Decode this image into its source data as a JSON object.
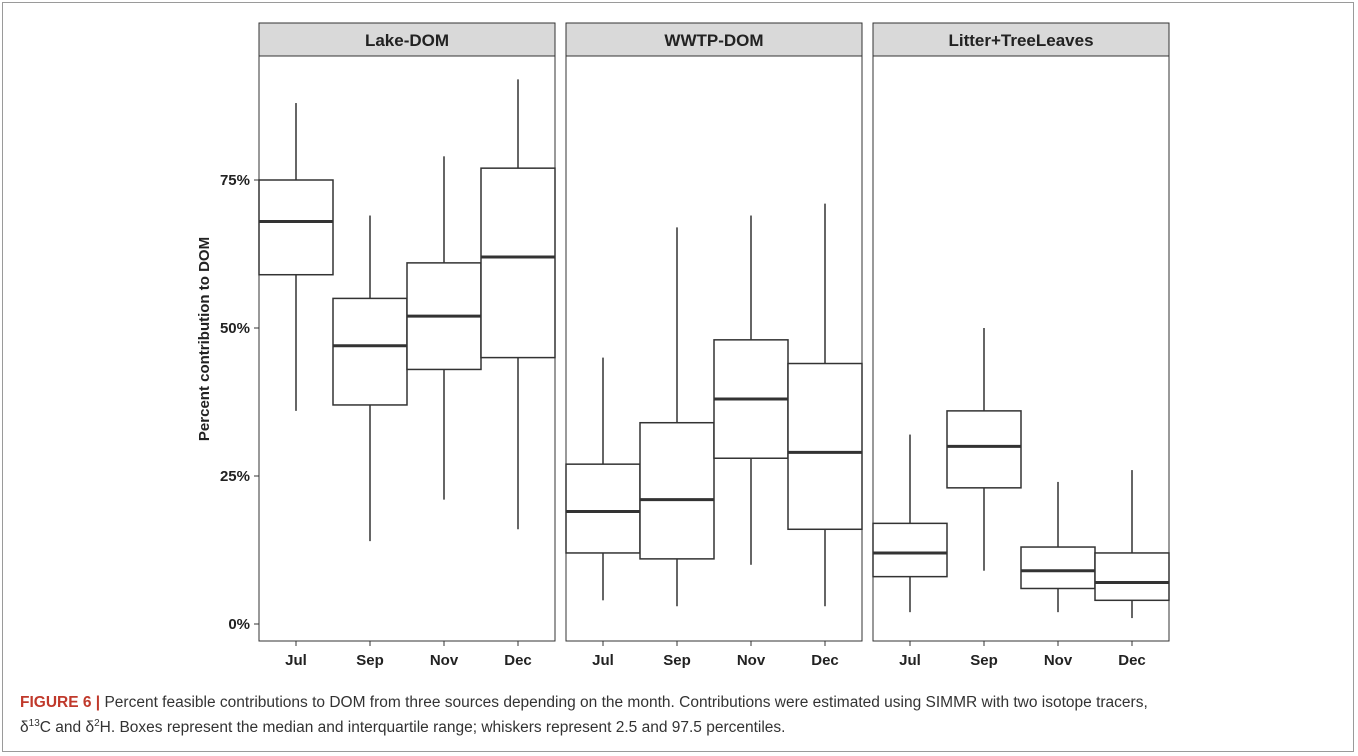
{
  "chart_data": {
    "type": "boxplot",
    "ylabel": "Percent contribution to DOM",
    "xlabel": "",
    "ylim": [
      0,
      1
    ],
    "y_ticks": [
      0,
      0.25,
      0.5,
      0.75
    ],
    "y_tick_labels": [
      "0%",
      "25%",
      "50%",
      "75%"
    ],
    "categories": [
      "Jul",
      "Sep",
      "Nov",
      "Dec"
    ],
    "panels": [
      {
        "name": "Lake-DOM",
        "boxes": [
          {
            "month": "Jul",
            "whisker_low": 0.36,
            "q1": 0.59,
            "median": 0.68,
            "q3": 0.75,
            "whisker_high": 0.88
          },
          {
            "month": "Sep",
            "whisker_low": 0.14,
            "q1": 0.37,
            "median": 0.47,
            "q3": 0.55,
            "whisker_high": 0.69
          },
          {
            "month": "Nov",
            "whisker_low": 0.21,
            "q1": 0.43,
            "median": 0.52,
            "q3": 0.61,
            "whisker_high": 0.79
          },
          {
            "month": "Dec",
            "whisker_low": 0.16,
            "q1": 0.45,
            "median": 0.62,
            "q3": 0.77,
            "whisker_high": 0.92
          }
        ]
      },
      {
        "name": "WWTP-DOM",
        "boxes": [
          {
            "month": "Jul",
            "whisker_low": 0.04,
            "q1": 0.12,
            "median": 0.19,
            "q3": 0.27,
            "whisker_high": 0.45
          },
          {
            "month": "Sep",
            "whisker_low": 0.03,
            "q1": 0.11,
            "median": 0.21,
            "q3": 0.34,
            "whisker_high": 0.67
          },
          {
            "month": "Nov",
            "whisker_low": 0.1,
            "q1": 0.28,
            "median": 0.38,
            "q3": 0.48,
            "whisker_high": 0.69
          },
          {
            "month": "Dec",
            "whisker_low": 0.03,
            "q1": 0.16,
            "median": 0.29,
            "q3": 0.44,
            "whisker_high": 0.71
          }
        ]
      },
      {
        "name": "Litter+TreeLeaves",
        "boxes": [
          {
            "month": "Jul",
            "whisker_low": 0.02,
            "q1": 0.08,
            "median": 0.12,
            "q3": 0.17,
            "whisker_high": 0.32
          },
          {
            "month": "Sep",
            "whisker_low": 0.09,
            "q1": 0.23,
            "median": 0.3,
            "q3": 0.36,
            "whisker_high": 0.5
          },
          {
            "month": "Nov",
            "whisker_low": 0.02,
            "q1": 0.06,
            "median": 0.09,
            "q3": 0.13,
            "whisker_high": 0.24
          },
          {
            "month": "Dec",
            "whisker_low": 0.01,
            "q1": 0.04,
            "median": 0.07,
            "q3": 0.12,
            "whisker_high": 0.26
          }
        ]
      }
    ],
    "grid": false,
    "legend": "none"
  },
  "caption": {
    "label": "FIGURE 6",
    "separator": "|",
    "text_line1": "Percent feasible contributions to DOM from three sources depending on the month. Contributions were estimated using SIMMR with two isotope tracers,",
    "delta": "δ",
    "c_mass": "13",
    "c_el": "C and ",
    "h_mass": "2",
    "h_el": "H. Boxes represent the median and interquartile range; whiskers represent 2.5 and 97.5 percentiles."
  },
  "colors": {
    "box_stroke": "#333333",
    "strip_fill": "#d9d9d9",
    "panel_border": "#333333",
    "caption_label": "#c0392b"
  }
}
